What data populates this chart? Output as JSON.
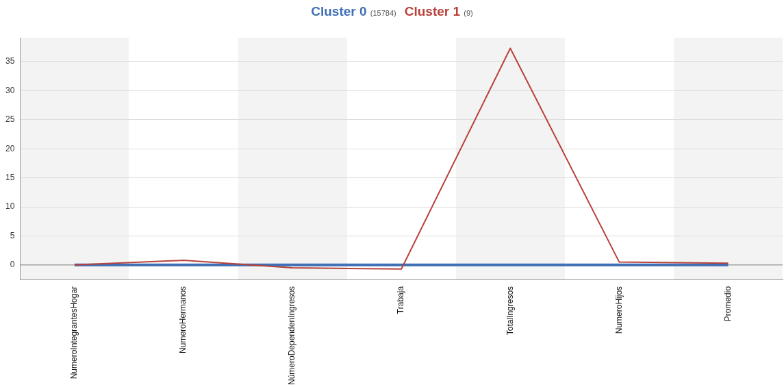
{
  "chart_data": {
    "type": "line",
    "categories": [
      "NumeroIntegrantesHogar",
      "NumeroHermanos",
      "NúmeroDependenIngresos",
      "Trabaja",
      "TotalIngresos",
      "NumeroHijos",
      "Promedio"
    ],
    "series": [
      {
        "name": "Cluster 0 (15784)",
        "color": "#3f6fb5",
        "values": [
          0,
          0,
          0,
          0,
          0,
          0,
          0
        ]
      },
      {
        "name": "Cluster 1 (9)",
        "color": "#b8413a",
        "values": [
          0,
          0.8,
          -0.5,
          -0.7,
          37.3,
          0.5,
          0.3
        ]
      }
    ],
    "ylim": [
      -2.6,
      39.1
    ],
    "yticks": [
      0,
      5,
      10,
      15,
      20,
      25,
      30,
      35
    ],
    "grid": "y",
    "legend": "top",
    "marker": "none",
    "line_style": "solid",
    "ref_lines": [
      {
        "axis": "y",
        "value": 0,
        "color": "#808080"
      }
    ]
  }
}
